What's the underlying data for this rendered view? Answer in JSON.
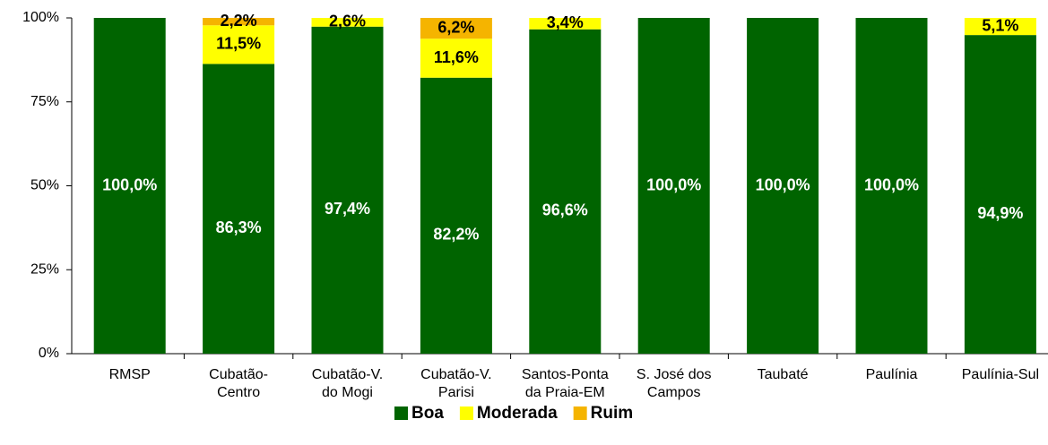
{
  "chart_data": {
    "type": "stacked_bar",
    "categories": [
      "RMSP",
      "Cubatão-\nCentro",
      "Cubatão-V.\ndo Mogi",
      "Cubatão-V.\nParisi",
      "Santos-Ponta\nda Praia-EM",
      "S. José dos\nCampos",
      "Taubaté",
      "Paulínia",
      "Paulínia-Sul"
    ],
    "series": [
      {
        "name": "Boa",
        "color": "#006400",
        "label_color": "#ffffff",
        "values": [
          100,
          86.3,
          97.4,
          82.2,
          96.6,
          100,
          100,
          100,
          94.9
        ],
        "value_labels": [
          "100,0%",
          "86,3%",
          "97,4%",
          "82,2%",
          "96,6%",
          "100,0%",
          "100,0%",
          "100,0%",
          "94,9%"
        ]
      },
      {
        "name": "Moderada",
        "color": "#ffff00",
        "label_color": "#000000",
        "values": [
          0,
          11.5,
          2.6,
          11.6,
          3.4,
          0,
          0,
          0,
          5.1
        ],
        "value_labels": [
          null,
          "11,5%",
          "2,6%",
          "11,6%",
          "3,4%",
          null,
          null,
          null,
          "5,1%"
        ]
      },
      {
        "name": "Ruim",
        "color": "#f5b400",
        "label_color": "#000000",
        "values": [
          0,
          2.2,
          0,
          6.2,
          0,
          0,
          0,
          0,
          0
        ],
        "value_labels": [
          null,
          "2,2%",
          null,
          "6,2%",
          null,
          null,
          null,
          null,
          null
        ]
      }
    ],
    "ylim": [
      0,
      100
    ],
    "yticks": [
      {
        "value": 0,
        "label": "0%"
      },
      {
        "value": 25,
        "label": "25%"
      },
      {
        "value": 50,
        "label": "50%"
      },
      {
        "value": 75,
        "label": "75%"
      },
      {
        "value": 100,
        "label": "100%"
      }
    ],
    "legend": "bottom"
  }
}
